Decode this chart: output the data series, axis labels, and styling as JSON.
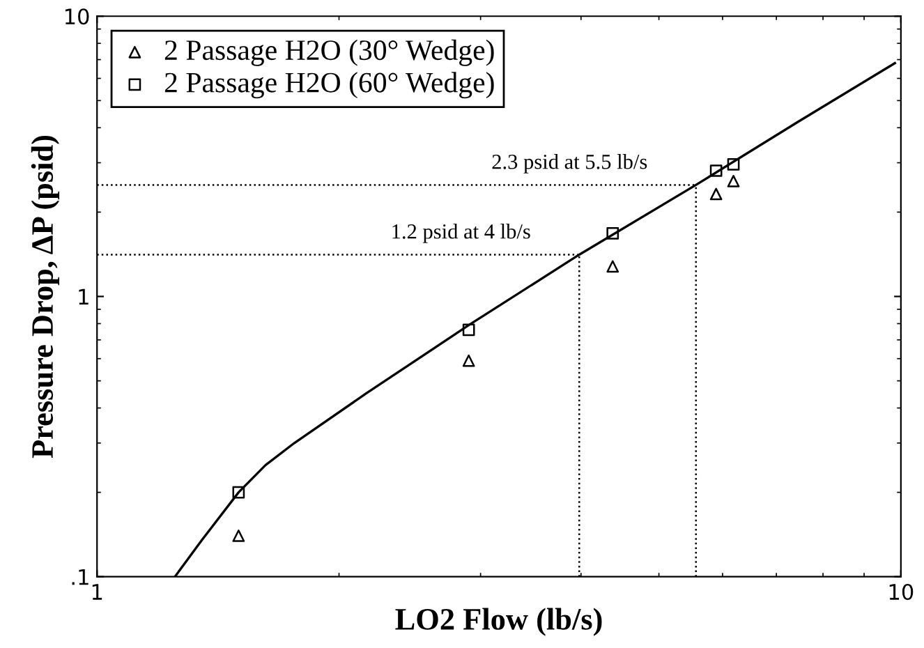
{
  "chart_data": {
    "type": "scatter",
    "xlabel": "LO2 Flow (lb/s)",
    "ylabel": "Pressure Drop, ΔP (psid)",
    "log": "xy",
    "xlim": [
      1,
      10
    ],
    "ylim": [
      0.1,
      10
    ],
    "xticks": [
      1,
      10
    ],
    "yticks": [
      {
        "value": 0.1,
        "label": ".1"
      },
      1,
      10
    ],
    "grid": false,
    "legend": "top left",
    "series": [
      {
        "name": "2 Passage H2O (30° Wedge)",
        "color": "#000000",
        "marker": "triangle",
        "x": [
          1.5,
          2.9,
          4.38,
          5.89,
          6.19
        ],
        "values": [
          0.14,
          0.59,
          1.28,
          2.32,
          2.58
        ]
      },
      {
        "name": "2 Passage H2O (60° Wedge)",
        "color": "#000000",
        "marker": "square",
        "x": [
          1.5,
          2.9,
          4.38,
          5.89,
          6.19
        ],
        "values": [
          0.2,
          0.76,
          1.68,
          2.81,
          2.96
        ]
      },
      {
        "type": "line",
        "color": "#000000",
        "marker": "none",
        "line_style": "solid",
        "x": [
          1.25,
          1.35,
          1.5,
          1.62,
          1.76,
          2.16,
          2.9,
          3.98,
          5.56,
          7.45,
          9.83
        ],
        "values": [
          0.1,
          0.135,
          0.2,
          0.25,
          0.3,
          0.45,
          0.79,
          1.41,
          2.5,
          4.2,
          6.8
        ]
      }
    ],
    "ref_lines": [
      {
        "axis": "y",
        "value": 1.41,
        "label": "1.2 psid at 4 lb/s",
        "line_style": "dotted",
        "color": "#000000"
      },
      {
        "axis": "y",
        "value": 2.5,
        "label": "2.3 psid at 5.5 lb/s",
        "line_style": "dotted",
        "color": "#000000"
      },
      {
        "axis": "x",
        "value": 3.98,
        "line_style": "dotted",
        "color": "#000000"
      },
      {
        "axis": "x",
        "value": 5.56,
        "line_style": "dotted",
        "color": "#000000"
      }
    ]
  }
}
